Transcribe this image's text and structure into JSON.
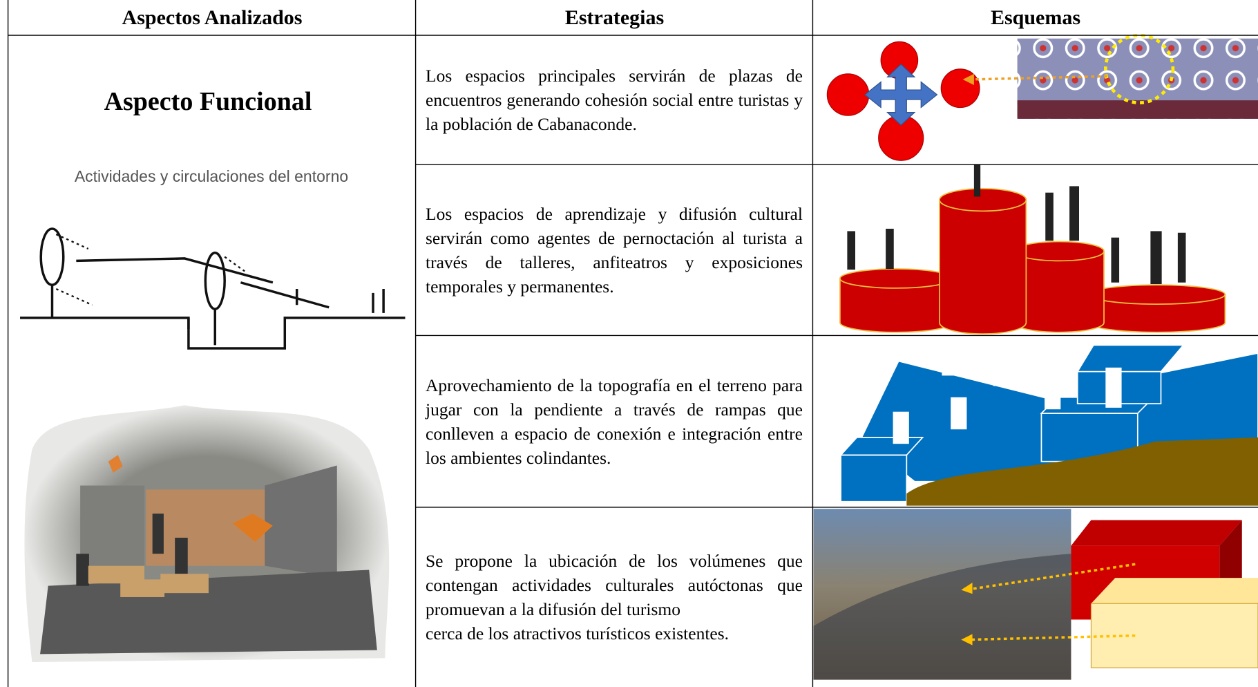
{
  "header": {
    "columns": [
      "Aspectos Analizados",
      "Estrategias",
      "Esquemas"
    ]
  },
  "aspect": {
    "title": "Aspecto Funcional",
    "subtitle": "Actividades y circulaciones del entorno"
  },
  "rows": [
    {
      "strategy": [
        "Los espacios principales servirán de plazas de encuentros generando cohesión social entre turistas y la población de Cabanaconde."
      ]
    },
    {
      "strategy": [
        "Los espacios de aprendizaje y difusión cultural servirán como agentes de pernoctación al turista a través de talleres, anfiteatros y exposiciones temporales y permanentes."
      ]
    },
    {
      "strategy": [
        "Aprovechamiento de la topografía en el terreno para jugar con la pendiente a través de rampas que conlleven a espacio de conexión e integración entre los ambientes colindantes."
      ]
    },
    {
      "strategy": [
        "Se propone la ubicación de los volúmenes que contengan actividades culturales autóctonas que promuevan a la difusión del turismo",
        "cerca de los atractivos turísticos existentes."
      ]
    }
  ]
}
